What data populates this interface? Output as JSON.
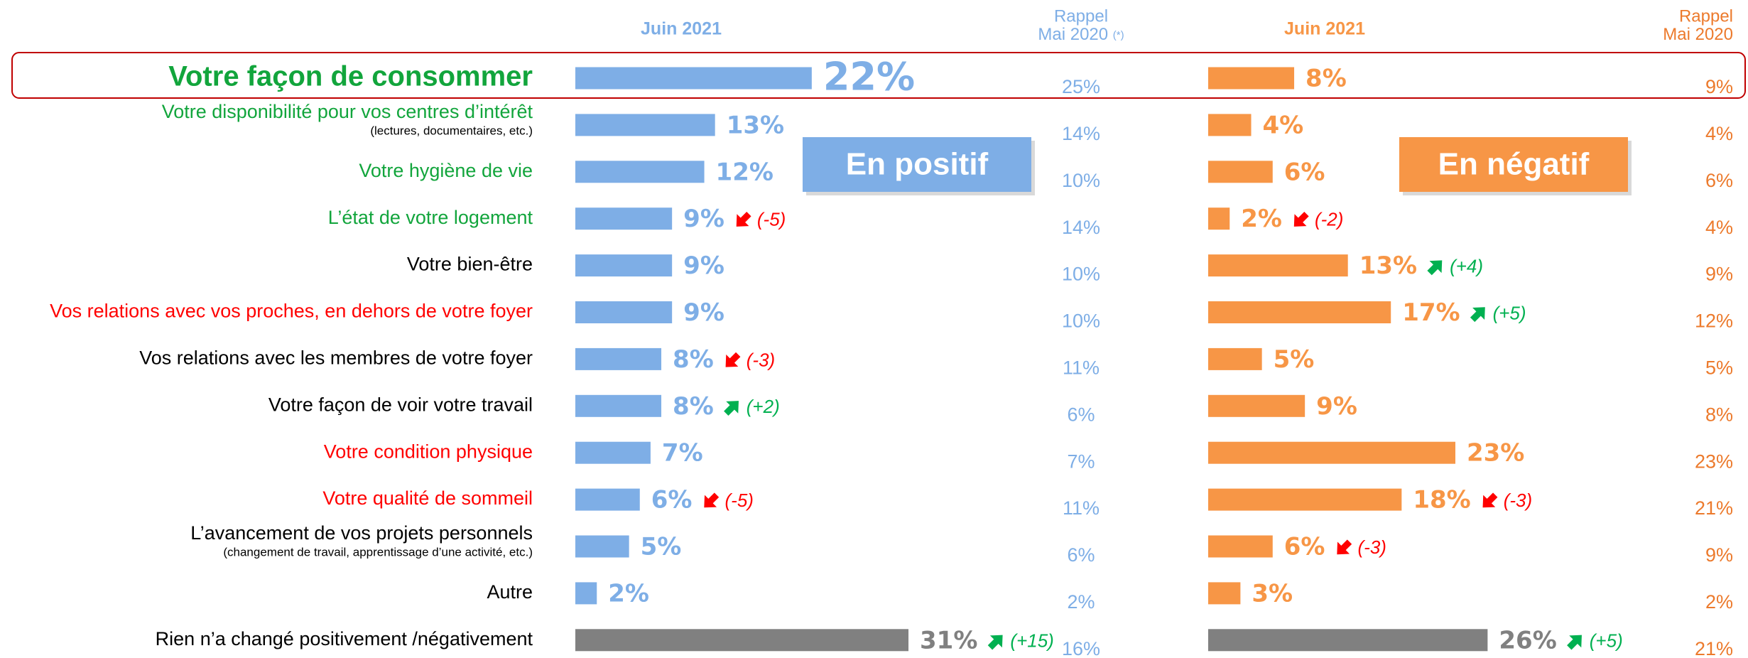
{
  "chart_data": {
    "type": "butterfly-bar",
    "categories": [
      "Votre façon de consommer",
      "Votre disponibilité pour vos centres d’intérêt",
      "Votre hygiène de vie",
      "L’état de votre logement",
      "Votre bien-être",
      "Vos relations avec vos proches, en dehors de votre foyer",
      "Vos relations avec les membres de votre foyer",
      "Votre façon de voir votre travail",
      "Votre condition physique",
      "Votre qualité de sommeil",
      "L’avancement de vos projets personnels",
      "Autre",
      "Rien n’a changé positivement /négativement"
    ],
    "category_notes": [
      null,
      "(lectures, documentaires, etc.)",
      null,
      null,
      null,
      null,
      null,
      null,
      null,
      null,
      "(changement de travail, apprentissage d’une activité, etc.)",
      null,
      null
    ],
    "label_colors": [
      "#12a53c",
      "#12a53c",
      "#12a53c",
      "#12a53c",
      "#000000",
      "#ff0000",
      "#000000",
      "#000000",
      "#ff0000",
      "#ff0000",
      "#000000",
      "#000000",
      "#000000"
    ],
    "highlight_color": "#c00000",
    "recall_header": {
      "title": "Rappel",
      "subtitle": "Mai 2020",
      "note": "(*)"
    },
    "series": [
      {
        "name": "En positif",
        "header": "Juin 2021",
        "color": "#7eaee6",
        "recall_color": "#7eaee6",
        "recall_header": {
          "title": "Rappel",
          "subtitle": "Mai 2020",
          "note": "(*)"
        },
        "colors": [
          "#7eaee6",
          "#7eaee6",
          "#7eaee6",
          "#7eaee6",
          "#7eaee6",
          "#7eaee6",
          "#7eaee6",
          "#7eaee6",
          "#7eaee6",
          "#7eaee6",
          "#7eaee6",
          "#7eaee6",
          "#808080"
        ],
        "values": [
          22,
          13,
          12,
          9,
          9,
          9,
          8,
          8,
          7,
          6,
          5,
          2,
          31
        ],
        "value_labels": [
          "22%",
          "13%",
          "12%",
          "9%",
          "9%",
          "9%",
          "8%",
          "8%",
          "7%",
          "6%",
          "5%",
          "2%",
          "31%"
        ],
        "deltas": [
          null,
          null,
          null,
          -5,
          null,
          null,
          -3,
          2,
          null,
          -5,
          null,
          null,
          15
        ],
        "delta_labels": [
          null,
          null,
          null,
          "(-5)",
          null,
          null,
          "(-3)",
          "(+2)",
          null,
          "(-5)",
          null,
          null,
          "(+15)"
        ],
        "recall_values": [
          25,
          14,
          10,
          14,
          10,
          10,
          11,
          6,
          7,
          11,
          6,
          2,
          16
        ],
        "recall_labels": [
          "25%",
          "14%",
          "10%",
          "14%",
          "10%",
          "10%",
          "11%",
          "6%",
          "7%",
          "11%",
          "6%",
          "2%",
          "16%"
        ]
      },
      {
        "name": "En négatif",
        "header": "Juin 2021",
        "color": "#f79646",
        "recall_color": "#ec7a2c",
        "recall_header": {
          "title": "Rappel",
          "subtitle": "Mai 2020"
        },
        "colors": [
          "#f79646",
          "#f79646",
          "#f79646",
          "#f79646",
          "#f79646",
          "#f79646",
          "#f79646",
          "#f79646",
          "#f79646",
          "#f79646",
          "#f79646",
          "#f79646",
          "#808080"
        ],
        "values": [
          8,
          4,
          6,
          2,
          13,
          17,
          5,
          9,
          23,
          18,
          6,
          3,
          26
        ],
        "value_labels": [
          "8%",
          "4%",
          "6%",
          "2%",
          "13%",
          "17%",
          "5%",
          "9%",
          "23%",
          "18%",
          "6%",
          "3%",
          "26%"
        ],
        "deltas": [
          null,
          null,
          null,
          -2,
          4,
          5,
          null,
          null,
          null,
          -3,
          -3,
          null,
          5
        ],
        "delta_labels": [
          null,
          null,
          null,
          "(-2)",
          "(+4)",
          "(+5)",
          null,
          null,
          null,
          "(-3)",
          "(-3)",
          null,
          "(+5)"
        ],
        "recall_values": [
          9,
          4,
          6,
          4,
          9,
          12,
          5,
          8,
          23,
          21,
          9,
          2,
          21
        ],
        "recall_labels": [
          "9%",
          "4%",
          "6%",
          "4%",
          "9%",
          "12%",
          "5%",
          "8%",
          "23%",
          "21%",
          "9%",
          "2%",
          "21%"
        ]
      }
    ],
    "up_color": "#00b050",
    "down_color": "#ff0000"
  }
}
